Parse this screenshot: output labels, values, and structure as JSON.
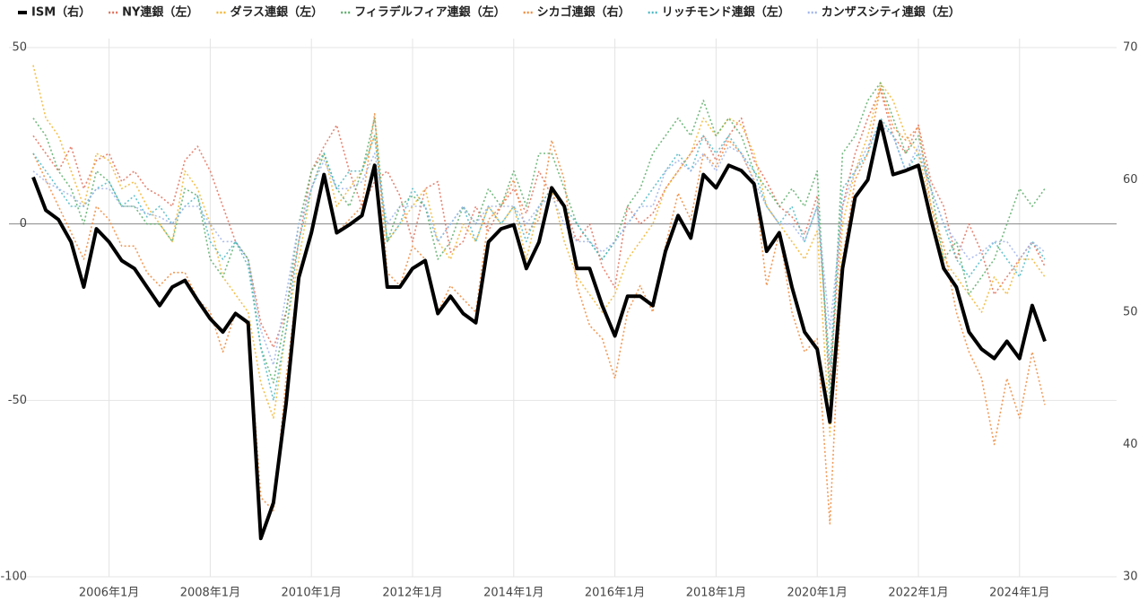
{
  "chart_data": {
    "type": "line",
    "categories": [
      null,
      null,
      null,
      null,
      null,
      null,
      "2006年1月",
      null,
      null,
      null,
      null,
      null,
      null,
      null,
      "2008年1月",
      null,
      null,
      null,
      null,
      null,
      null,
      null,
      "2010年1月",
      null,
      null,
      null,
      null,
      null,
      null,
      null,
      "2012年1月",
      null,
      null,
      null,
      null,
      null,
      null,
      null,
      "2014年1月",
      null,
      null,
      null,
      null,
      null,
      null,
      null,
      "2016年1月",
      null,
      null,
      null,
      null,
      null,
      null,
      null,
      "2018年1月",
      null,
      null,
      null,
      null,
      null,
      null,
      null,
      "2020年1月",
      null,
      null,
      null,
      null,
      null,
      null,
      null,
      "2022年1月",
      null,
      null,
      null,
      null,
      null,
      null,
      null,
      "2024年1月",
      null,
      null
    ],
    "ylim": [
      -100,
      50
    ],
    "yticks": [
      -100,
      -50,
      0,
      50
    ],
    "y2lim": [
      30,
      70
    ],
    "y2ticks": [
      30,
      40,
      50,
      60,
      70
    ],
    "grid": true,
    "legend": "top",
    "series": [
      {
        "name": "ISM（右）",
        "color": "#000000",
        "style": "solid",
        "axis": "y2",
        "values": [
          60.2,
          57.7,
          57.0,
          55.3,
          51.9,
          56.3,
          55.3,
          53.9,
          53.3,
          51.9,
          50.5,
          51.9,
          52.4,
          50.9,
          49.5,
          48.5,
          49.9,
          49.2,
          32.9,
          35.6,
          43.1,
          52.6,
          56.0,
          60.4,
          56.0,
          56.6,
          57.3,
          61.1,
          51.9,
          51.9,
          53.3,
          53.9,
          49.9,
          51.2,
          49.9,
          49.2,
          55.3,
          56.3,
          56.6,
          53.3,
          55.3,
          59.4,
          58.0,
          53.3,
          53.3,
          50.5,
          48.2,
          51.2,
          51.2,
          50.5,
          54.6,
          57.3,
          55.6,
          60.4,
          59.4,
          61.1,
          60.7,
          59.7,
          54.6,
          56.0,
          51.9,
          48.5,
          47.2,
          41.7,
          53.3,
          58.7,
          60.0,
          64.4,
          60.4,
          60.7,
          61.1,
          57.0,
          53.3,
          51.9,
          48.5,
          47.2,
          46.5,
          47.8,
          46.5,
          50.5,
          47.8
        ]
      },
      {
        "name": "NY連銀（左）",
        "color": "#e0705a",
        "style": "dotted",
        "values": [
          25,
          20,
          15,
          22,
          10,
          18,
          20,
          12,
          15,
          10,
          8,
          5,
          18,
          22,
          15,
          5,
          -5,
          -10,
          -28,
          -35,
          -25,
          -5,
          15,
          22,
          28,
          15,
          5,
          12,
          15,
          8,
          -5,
          10,
          12,
          -8,
          -5,
          5,
          -2,
          5,
          10,
          3,
          15,
          8,
          5,
          -5,
          0,
          -12,
          -18,
          5,
          0,
          3,
          10,
          15,
          20,
          25,
          18,
          25,
          30,
          18,
          12,
          5,
          2,
          -3,
          8,
          -45,
          5,
          20,
          30,
          38,
          25,
          20,
          28,
          12,
          5,
          -10,
          0,
          -8,
          -20,
          -15,
          -10,
          -5,
          -12
        ]
      },
      {
        "name": "ダラス連銀（左）",
        "color": "#f2b632",
        "style": "dotted",
        "values": [
          45,
          30,
          25,
          15,
          5,
          20,
          18,
          10,
          12,
          5,
          0,
          -5,
          15,
          10,
          0,
          -15,
          -20,
          -25,
          -45,
          -55,
          -30,
          -10,
          10,
          20,
          5,
          10,
          15,
          25,
          -5,
          0,
          5,
          10,
          -5,
          -10,
          0,
          -5,
          5,
          0,
          5,
          -10,
          5,
          10,
          -5,
          -15,
          -20,
          -25,
          -20,
          -10,
          -5,
          0,
          10,
          15,
          20,
          30,
          25,
          30,
          28,
          20,
          5,
          0,
          -5,
          -10,
          -2,
          -60,
          0,
          15,
          25,
          40,
          35,
          25,
          20,
          5,
          -10,
          -15,
          -20,
          -25,
          -15,
          -20,
          -10,
          -10,
          -15
        ]
      },
      {
        "name": "フィラデルフィア連銀（左）",
        "color": "#5cae6a",
        "style": "dotted",
        "values": [
          30,
          25,
          15,
          10,
          0,
          15,
          12,
          5,
          5,
          0,
          0,
          -5,
          10,
          8,
          -10,
          -15,
          -5,
          -10,
          -35,
          -45,
          -25,
          0,
          15,
          20,
          10,
          5,
          15,
          30,
          -5,
          5,
          8,
          5,
          -10,
          -5,
          5,
          0,
          10,
          5,
          15,
          5,
          20,
          20,
          10,
          0,
          -5,
          -10,
          -5,
          5,
          10,
          20,
          25,
          30,
          25,
          35,
          25,
          30,
          25,
          15,
          10,
          5,
          10,
          5,
          15,
          -50,
          20,
          25,
          35,
          40,
          30,
          20,
          25,
          10,
          -10,
          -5,
          -20,
          -15,
          -10,
          0,
          10,
          5,
          10
        ]
      },
      {
        "name": "シカゴ連銀（右）",
        "color": "#ef8a3c",
        "style": "dotted",
        "axis": "y2",
        "values": [
          62,
          60,
          58,
          56,
          54,
          58,
          57,
          55,
          55,
          53,
          52,
          53,
          53,
          51,
          50,
          47,
          50,
          49,
          36,
          35,
          45,
          53,
          56,
          60,
          56,
          57,
          58,
          65,
          53,
          52,
          55,
          54,
          50,
          52,
          51,
          50,
          57,
          58,
          60,
          56,
          57,
          63,
          60,
          52,
          49,
          48,
          45,
          50,
          52,
          50,
          55,
          59,
          57,
          62,
          61,
          63,
          62,
          60,
          52,
          56,
          50,
          47,
          48,
          34,
          54,
          60,
          62,
          67,
          64,
          63,
          64,
          58,
          55,
          50,
          47,
          45,
          40,
          45,
          42,
          47,
          43
        ]
      },
      {
        "name": "リッチモンド連銀（左）",
        "color": "#4cb8c4",
        "style": "dotted",
        "values": [
          20,
          15,
          10,
          5,
          5,
          10,
          12,
          5,
          8,
          2,
          5,
          0,
          5,
          8,
          -5,
          -10,
          -5,
          -12,
          -35,
          -50,
          -30,
          -5,
          10,
          20,
          10,
          15,
          15,
          25,
          -5,
          0,
          10,
          5,
          -5,
          0,
          5,
          -5,
          5,
          0,
          5,
          -5,
          5,
          10,
          5,
          0,
          -5,
          -10,
          -5,
          0,
          5,
          10,
          15,
          20,
          15,
          25,
          20,
          25,
          20,
          15,
          5,
          0,
          5,
          -5,
          5,
          -40,
          10,
          15,
          20,
          30,
          25,
          15,
          20,
          10,
          0,
          -10,
          -15,
          -10,
          -5,
          -10,
          -15,
          -5,
          -10
        ]
      },
      {
        "name": "カンザスシティ連銀（左）",
        "color": "#9fb3ea",
        "style": "dotted",
        "values": [
          15,
          12,
          10,
          8,
          5,
          10,
          10,
          5,
          5,
          3,
          2,
          0,
          5,
          5,
          0,
          -5,
          -5,
          -10,
          -30,
          -40,
          -20,
          0,
          10,
          18,
          10,
          10,
          12,
          20,
          0,
          5,
          5,
          5,
          -5,
          0,
          5,
          0,
          5,
          5,
          5,
          0,
          5,
          8,
          0,
          -5,
          -5,
          -8,
          -5,
          0,
          5,
          5,
          15,
          18,
          15,
          20,
          15,
          22,
          20,
          12,
          5,
          0,
          0,
          -5,
          5,
          -30,
          5,
          15,
          22,
          28,
          25,
          15,
          22,
          10,
          0,
          -5,
          -10,
          -8,
          -5,
          -5,
          -10,
          -5,
          -8
        ]
      }
    ]
  }
}
